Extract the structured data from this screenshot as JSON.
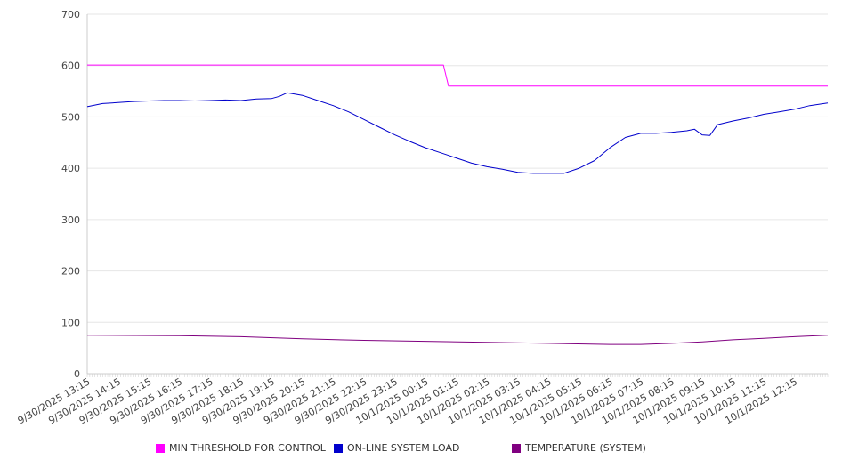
{
  "chart_data": {
    "type": "line",
    "title": "",
    "xlabel": "",
    "ylabel": "",
    "ylim": [
      0,
      700
    ],
    "yticks": [
      0,
      100,
      200,
      300,
      400,
      500,
      600,
      700
    ],
    "grid": true,
    "legend_position": "bottom",
    "xlim": [
      "9/30/2025 13:15",
      "10/1/2025 13:20"
    ],
    "x_tick_labels": [
      "9/30/2025 13:15",
      "9/30/2025 14:15",
      "9/30/2025 15:15",
      "9/30/2025 16:15",
      "9/30/2025 17:15",
      "9/30/2025 18:15",
      "9/30/2025 19:15",
      "9/30/2025 20:15",
      "9/30/2025 21:15",
      "9/30/2025 22:15",
      "9/30/2025 23:15",
      "10/1/2025 00:15",
      "10/1/2025 01:15",
      "10/1/2025 02:15",
      "10/1/2025 03:15",
      "10/1/2025 04:15",
      "10/1/2025 05:15",
      "10/1/2025 06:15",
      "10/1/2025 07:15",
      "10/1/2025 08:15",
      "10/1/2025 09:15",
      "10/1/2025 10:15",
      "10/1/2025 11:15",
      "10/1/2025 12:15"
    ],
    "series": [
      {
        "name": "MIN THRESHOLD FOR CONTROL",
        "color": "#ff00ff",
        "x": [
          "9/30/2025 13:15",
          "10/1/2025 00:50",
          "10/1/2025 01:00",
          "10/1/2025 13:20"
        ],
        "values": [
          601,
          601,
          560,
          560
        ]
      },
      {
        "name": "ON-LINE SYSTEM LOAD",
        "color": "#0000cc",
        "x": [
          "9/30/2025 13:15",
          "9/30/2025 13:45",
          "9/30/2025 14:15",
          "9/30/2025 14:45",
          "9/30/2025 15:15",
          "9/30/2025 15:45",
          "9/30/2025 16:15",
          "9/30/2025 16:45",
          "9/30/2025 17:15",
          "9/30/2025 17:45",
          "9/30/2025 18:15",
          "9/30/2025 18:45",
          "9/30/2025 19:15",
          "9/30/2025 19:30",
          "9/30/2025 19:45",
          "9/30/2025 20:15",
          "9/30/2025 20:45",
          "9/30/2025 21:15",
          "9/30/2025 21:45",
          "9/30/2025 22:15",
          "9/30/2025 22:45",
          "9/30/2025 23:15",
          "9/30/2025 23:45",
          "10/1/2025 00:15",
          "10/1/2025 00:45",
          "10/1/2025 01:15",
          "10/1/2025 01:45",
          "10/1/2025 02:15",
          "10/1/2025 02:45",
          "10/1/2025 03:15",
          "10/1/2025 03:45",
          "10/1/2025 04:15",
          "10/1/2025 04:45",
          "10/1/2025 05:15",
          "10/1/2025 05:45",
          "10/1/2025 06:15",
          "10/1/2025 06:45",
          "10/1/2025 07:15",
          "10/1/2025 07:45",
          "10/1/2025 08:15",
          "10/1/2025 08:45",
          "10/1/2025 09:00",
          "10/1/2025 09:15",
          "10/1/2025 09:30",
          "10/1/2025 09:45",
          "10/1/2025 10:15",
          "10/1/2025 10:45",
          "10/1/2025 11:15",
          "10/1/2025 11:45",
          "10/1/2025 12:15",
          "10/1/2025 12:45",
          "10/1/2025 13:20"
        ],
        "values": [
          520,
          526,
          528,
          530,
          531,
          532,
          532,
          531,
          532,
          533,
          532,
          535,
          536,
          540,
          547,
          542,
          532,
          522,
          510,
          495,
          480,
          465,
          452,
          440,
          430,
          420,
          410,
          403,
          398,
          392,
          390,
          390,
          390,
          400,
          415,
          440,
          460,
          468,
          468,
          470,
          473,
          476,
          465,
          464,
          485,
          492,
          498,
          505,
          510,
          515,
          522,
          527
        ]
      },
      {
        "name": "TEMPERATURE (SYSTEM)",
        "color": "#800080",
        "x": [
          "9/30/2025 13:15",
          "9/30/2025 16:15",
          "9/30/2025 18:15",
          "9/30/2025 20:15",
          "9/30/2025 22:15",
          "10/1/2025 00:15",
          "10/1/2025 02:15",
          "10/1/2025 04:15",
          "10/1/2025 06:15",
          "10/1/2025 07:15",
          "10/1/2025 08:15",
          "10/1/2025 09:15",
          "10/1/2025 10:15",
          "10/1/2025 11:15",
          "10/1/2025 12:15",
          "10/1/2025 13:20"
        ],
        "values": [
          75,
          74,
          72,
          68,
          65,
          63,
          61,
          59,
          57,
          57,
          59,
          62,
          66,
          69,
          72,
          75
        ]
      }
    ]
  }
}
